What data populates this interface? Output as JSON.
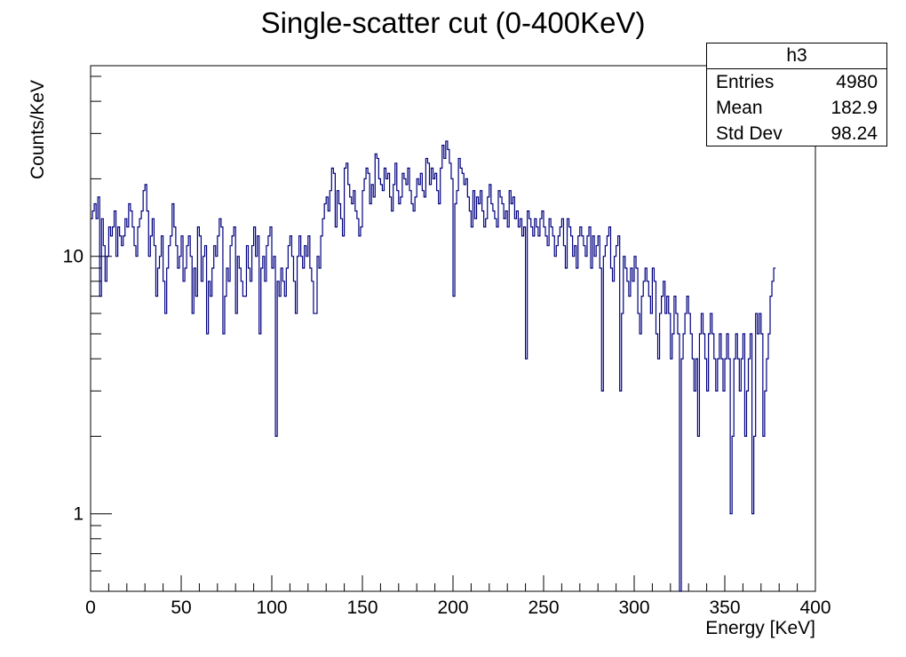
{
  "chart_data": {
    "type": "histogram",
    "title": "Single-scatter cut (0-400KeV)",
    "xlabel": "Energy [KeV]",
    "ylabel": "Counts/KeV",
    "xlim": [
      0,
      400
    ],
    "ylim": [
      0.5,
      55
    ],
    "yscale": "log",
    "xticks": [
      "0",
      "50",
      "100",
      "150",
      "200",
      "250",
      "300",
      "350",
      "400"
    ],
    "yticks": [
      "1",
      "10"
    ],
    "bin_width": 1,
    "line_color": "#00007f",
    "grid": false,
    "stats": {
      "name": "h3",
      "rows": [
        {
          "label": "Entries",
          "value": "4980"
        },
        {
          "label": "Mean",
          "value": "182.9"
        },
        {
          "label": "Std Dev",
          "value": "98.24"
        }
      ]
    },
    "values": [
      14,
      15,
      16,
      14,
      17,
      7,
      14,
      11,
      8,
      10,
      13,
      12,
      13,
      15,
      10,
      13,
      12,
      11,
      12,
      14,
      13,
      16,
      15,
      13,
      11,
      10,
      13,
      14,
      15,
      18,
      19,
      15,
      10,
      12,
      14,
      11,
      7,
      9,
      10,
      12,
      8,
      6,
      9,
      11,
      12,
      16,
      13,
      11,
      9,
      10,
      12,
      8,
      9,
      11,
      12,
      10,
      6,
      9,
      7,
      13,
      12,
      8,
      10,
      11,
      5,
      8,
      7,
      9,
      11,
      10,
      12,
      14,
      13,
      5,
      7,
      9,
      8,
      11,
      12,
      13,
      6,
      10,
      9,
      8,
      7,
      7,
      11,
      9,
      8,
      11,
      13,
      10,
      12,
      5,
      9,
      10,
      8,
      11,
      12,
      13,
      9,
      10,
      2,
      8,
      7,
      9,
      8,
      7,
      9,
      11,
      12,
      10,
      8,
      6,
      10,
      12,
      10,
      9,
      11,
      10,
      12,
      9,
      8,
      6,
      6,
      10,
      9,
      12,
      14,
      16,
      17,
      15,
      18,
      22,
      21,
      13,
      18,
      16,
      14,
      12,
      22,
      23,
      19,
      17,
      16,
      18,
      15,
      14,
      12,
      13,
      18,
      20,
      22,
      21,
      16,
      19,
      17,
      25,
      24,
      20,
      19,
      18,
      22,
      20,
      21,
      17,
      15,
      19,
      23,
      18,
      16,
      17,
      21,
      20,
      19,
      22,
      18,
      16,
      15,
      17,
      20,
      19,
      21,
      18,
      17,
      24,
      23,
      19,
      22,
      20,
      21,
      18,
      16,
      22,
      27,
      24,
      28,
      26,
      23,
      20,
      7,
      16,
      18,
      24,
      22,
      21,
      19,
      20,
      17,
      15,
      13,
      18,
      14,
      17,
      16,
      18,
      15,
      13,
      14,
      17,
      19,
      16,
      15,
      14,
      13,
      18,
      17,
      16,
      14,
      15,
      13,
      18,
      16,
      17,
      14,
      15,
      13,
      14,
      12,
      13,
      4,
      15,
      14,
      13,
      12,
      14,
      13,
      12,
      14,
      15,
      13,
      12,
      11,
      14,
      13,
      12,
      10,
      11,
      12,
      13,
      14,
      11,
      9,
      14,
      13,
      12,
      10,
      11,
      9,
      12,
      13,
      12,
      11,
      10,
      12,
      13,
      9,
      12,
      10,
      11,
      12,
      9,
      3,
      10,
      11,
      12,
      13,
      9,
      8,
      10,
      11,
      12,
      3,
      6,
      10,
      9,
      8,
      7,
      9,
      8,
      10,
      9,
      6,
      5,
      7,
      8,
      9,
      8,
      7,
      6,
      9,
      8,
      5,
      4,
      6,
      7,
      8,
      6,
      7,
      6,
      4,
      5,
      7,
      6,
      5,
      0.4,
      4,
      5,
      6,
      7,
      6,
      5,
      4,
      3,
      4,
      2,
      5,
      6,
      5,
      4,
      3,
      5,
      6,
      5,
      4,
      3,
      4,
      5,
      4,
      3,
      4,
      5,
      4,
      1,
      2,
      4,
      5,
      4,
      3,
      4,
      5,
      2,
      3,
      4,
      5,
      1,
      2,
      6,
      5,
      6,
      5,
      2,
      3,
      4,
      5,
      7,
      8,
      9
    ]
  }
}
